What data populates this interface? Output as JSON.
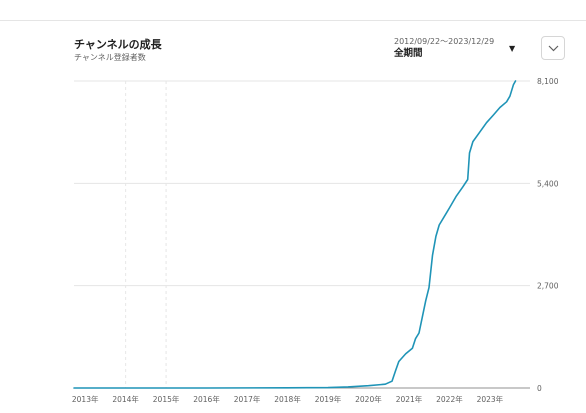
{
  "header": {
    "title": "チャンネルの成長",
    "subtitle": "チャンネル登録者数",
    "date_range": "2012/09/22〜2023/12/29",
    "period_label": "全期間",
    "period_dropdown_icon": "caret-down-icon",
    "expand_icon": "chevron-down-icon"
  },
  "chart_data": {
    "type": "line",
    "title": "チャンネルの成長",
    "subtitle": "チャンネル登録者数",
    "xlabel": "",
    "ylabel": "",
    "x_range": [
      "2012-09-22",
      "2023-12-29"
    ],
    "x_ticks": [
      "2013-01-01",
      "2014-01-01",
      "2015-01-01",
      "2016-01-01",
      "2017-01-01",
      "2018-01-01",
      "2019-01-01",
      "2020-01-01",
      "2021-01-01",
      "2022-01-01",
      "2023-01-01"
    ],
    "x_tick_labels": [
      "2013年",
      "2014年",
      "2015年",
      "2016年",
      "2017年",
      "2018年",
      "2019年",
      "2020年",
      "2021年",
      "2022年",
      "2023年"
    ],
    "ylim": [
      0,
      8100
    ],
    "y_ticks": [
      0,
      2700,
      5400,
      8100
    ],
    "y_tick_labels": [
      "0",
      "2,700",
      "5,400",
      "8,100"
    ],
    "grid": "horizontal",
    "axis_side": "right",
    "colors": {
      "line": "#1f94b7",
      "grid": "#e5e5e5",
      "axis": "#909090"
    },
    "series": [
      {
        "points": [
          [
            "2012-09-22",
            0
          ],
          [
            "2016-01-01",
            0
          ],
          [
            "2018-01-01",
            5
          ],
          [
            "2019-01-01",
            10
          ],
          [
            "2019-07-01",
            30
          ],
          [
            "2020-01-01",
            60
          ],
          [
            "2020-06-01",
            100
          ],
          [
            "2020-08-01",
            180
          ],
          [
            "2020-09-01",
            450
          ],
          [
            "2020-10-01",
            700
          ],
          [
            "2020-12-01",
            900
          ],
          [
            "2021-02-01",
            1050
          ],
          [
            "2021-03-01",
            1300
          ],
          [
            "2021-04-01",
            1450
          ],
          [
            "2021-06-01",
            2300
          ],
          [
            "2021-07-01",
            2650
          ],
          [
            "2021-08-01",
            3500
          ],
          [
            "2021-09-01",
            4000
          ],
          [
            "2021-10-01",
            4300
          ],
          [
            "2021-12-01",
            4600
          ],
          [
            "2022-01-01",
            4750
          ],
          [
            "2022-03-01",
            5050
          ],
          [
            "2022-05-01",
            5300
          ],
          [
            "2022-06-15",
            5500
          ],
          [
            "2022-07-01",
            6200
          ],
          [
            "2022-08-01",
            6500
          ],
          [
            "2022-10-01",
            6750
          ],
          [
            "2022-12-01",
            7000
          ],
          [
            "2023-02-01",
            7200
          ],
          [
            "2023-04-01",
            7400
          ],
          [
            "2023-06-01",
            7550
          ],
          [
            "2023-07-01",
            7700
          ],
          [
            "2023-08-01",
            8000
          ],
          [
            "2023-08-20",
            8100
          ]
        ]
      }
    ]
  }
}
